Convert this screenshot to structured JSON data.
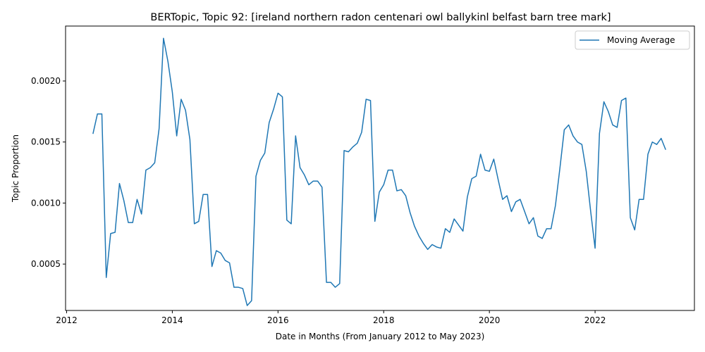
{
  "chart_data": {
    "type": "line",
    "title": "BERTopic, Topic 92: [ireland northern radon centenari owl ballykinl belfast barn tree mark]",
    "xlabel": "Date in Months (From January 2012 to May 2023)",
    "ylabel": "Topic Proportion",
    "xlim": [
      2011.98,
      2023.88
    ],
    "ylim": [
      0.00012,
      0.00245
    ],
    "x_ticks": [
      2012,
      2014,
      2016,
      2018,
      2020,
      2022
    ],
    "x_tick_labels": [
      "2012",
      "2014",
      "2016",
      "2018",
      "2020",
      "2022"
    ],
    "y_ticks": [
      0.0005,
      0.001,
      0.0015,
      0.002
    ],
    "y_tick_labels": [
      "0.0005",
      "0.0010",
      "0.0015",
      "0.0020"
    ],
    "grid": false,
    "legend_position": "top-right",
    "color": "#1f77b4",
    "series": [
      {
        "name": "Moving Average",
        "x": [
          2012.5,
          2012.583,
          2012.667,
          2012.75,
          2012.833,
          2012.917,
          2013.0,
          2013.083,
          2013.167,
          2013.25,
          2013.333,
          2013.417,
          2013.5,
          2013.583,
          2013.667,
          2013.75,
          2013.833,
          2013.917,
          2014.0,
          2014.083,
          2014.167,
          2014.25,
          2014.333,
          2014.417,
          2014.5,
          2014.583,
          2014.667,
          2014.75,
          2014.833,
          2014.917,
          2015.0,
          2015.083,
          2015.167,
          2015.25,
          2015.333,
          2015.417,
          2015.5,
          2015.583,
          2015.667,
          2015.75,
          2015.833,
          2015.917,
          2016.0,
          2016.083,
          2016.167,
          2016.25,
          2016.333,
          2016.417,
          2016.5,
          2016.583,
          2016.667,
          2016.75,
          2016.833,
          2016.917,
          2017.0,
          2017.083,
          2017.167,
          2017.25,
          2017.333,
          2017.417,
          2017.5,
          2017.583,
          2017.667,
          2017.75,
          2017.833,
          2017.917,
          2018.0,
          2018.083,
          2018.167,
          2018.25,
          2018.333,
          2018.417,
          2018.5,
          2018.583,
          2018.667,
          2018.75,
          2018.833,
          2018.917,
          2019.0,
          2019.083,
          2019.167,
          2019.25,
          2019.333,
          2019.417,
          2019.5,
          2019.583,
          2019.667,
          2019.75,
          2019.833,
          2019.917,
          2020.0,
          2020.083,
          2020.167,
          2020.25,
          2020.333,
          2020.417,
          2020.5,
          2020.583,
          2020.667,
          2020.75,
          2020.833,
          2020.917,
          2021.0,
          2021.083,
          2021.167,
          2021.25,
          2021.333,
          2021.417,
          2021.5,
          2021.583,
          2021.667,
          2021.75,
          2021.833,
          2021.917,
          2022.0,
          2022.083,
          2022.167,
          2022.25,
          2022.333,
          2022.417,
          2022.5,
          2022.583,
          2022.667,
          2022.75,
          2022.833,
          2022.917,
          2023.0,
          2023.083,
          2023.167,
          2023.25,
          2023.333
        ],
        "values": [
          0.00157,
          0.00173,
          0.00173,
          0.00039,
          0.00075,
          0.00076,
          0.00116,
          0.00102,
          0.00084,
          0.00084,
          0.00103,
          0.00091,
          0.00127,
          0.00129,
          0.00133,
          0.00161,
          0.00235,
          0.00216,
          0.00191,
          0.00155,
          0.00185,
          0.00176,
          0.00152,
          0.00083,
          0.00085,
          0.00107,
          0.00107,
          0.00048,
          0.00061,
          0.00059,
          0.00053,
          0.00051,
          0.00031,
          0.00031,
          0.0003,
          0.00016,
          0.0002,
          0.00122,
          0.00135,
          0.00141,
          0.00166,
          0.00177,
          0.0019,
          0.00187,
          0.00086,
          0.00083,
          0.00155,
          0.00129,
          0.00123,
          0.00115,
          0.00118,
          0.00118,
          0.00113,
          0.00035,
          0.00035,
          0.00031,
          0.00034,
          0.00143,
          0.00142,
          0.00146,
          0.00149,
          0.00158,
          0.00185,
          0.00184,
          0.00085,
          0.00109,
          0.00115,
          0.00127,
          0.00127,
          0.0011,
          0.00111,
          0.00106,
          0.00092,
          0.00081,
          0.00073,
          0.00067,
          0.00062,
          0.00066,
          0.00064,
          0.00063,
          0.00079,
          0.00076,
          0.00087,
          0.00082,
          0.00077,
          0.00105,
          0.0012,
          0.00122,
          0.0014,
          0.00127,
          0.00126,
          0.00136,
          0.00119,
          0.00103,
          0.00106,
          0.00093,
          0.00101,
          0.00103,
          0.00093,
          0.00083,
          0.00088,
          0.00073,
          0.00071,
          0.00079,
          0.00079,
          0.00098,
          0.00128,
          0.0016,
          0.00164,
          0.00155,
          0.0015,
          0.00148,
          0.00126,
          0.00093,
          0.00063,
          0.00157,
          0.00183,
          0.00175,
          0.00164,
          0.00162,
          0.00184,
          0.00186,
          0.00088,
          0.00078,
          0.00103,
          0.00103,
          0.0014,
          0.0015,
          0.00148,
          0.00153,
          0.00144
        ]
      }
    ]
  }
}
